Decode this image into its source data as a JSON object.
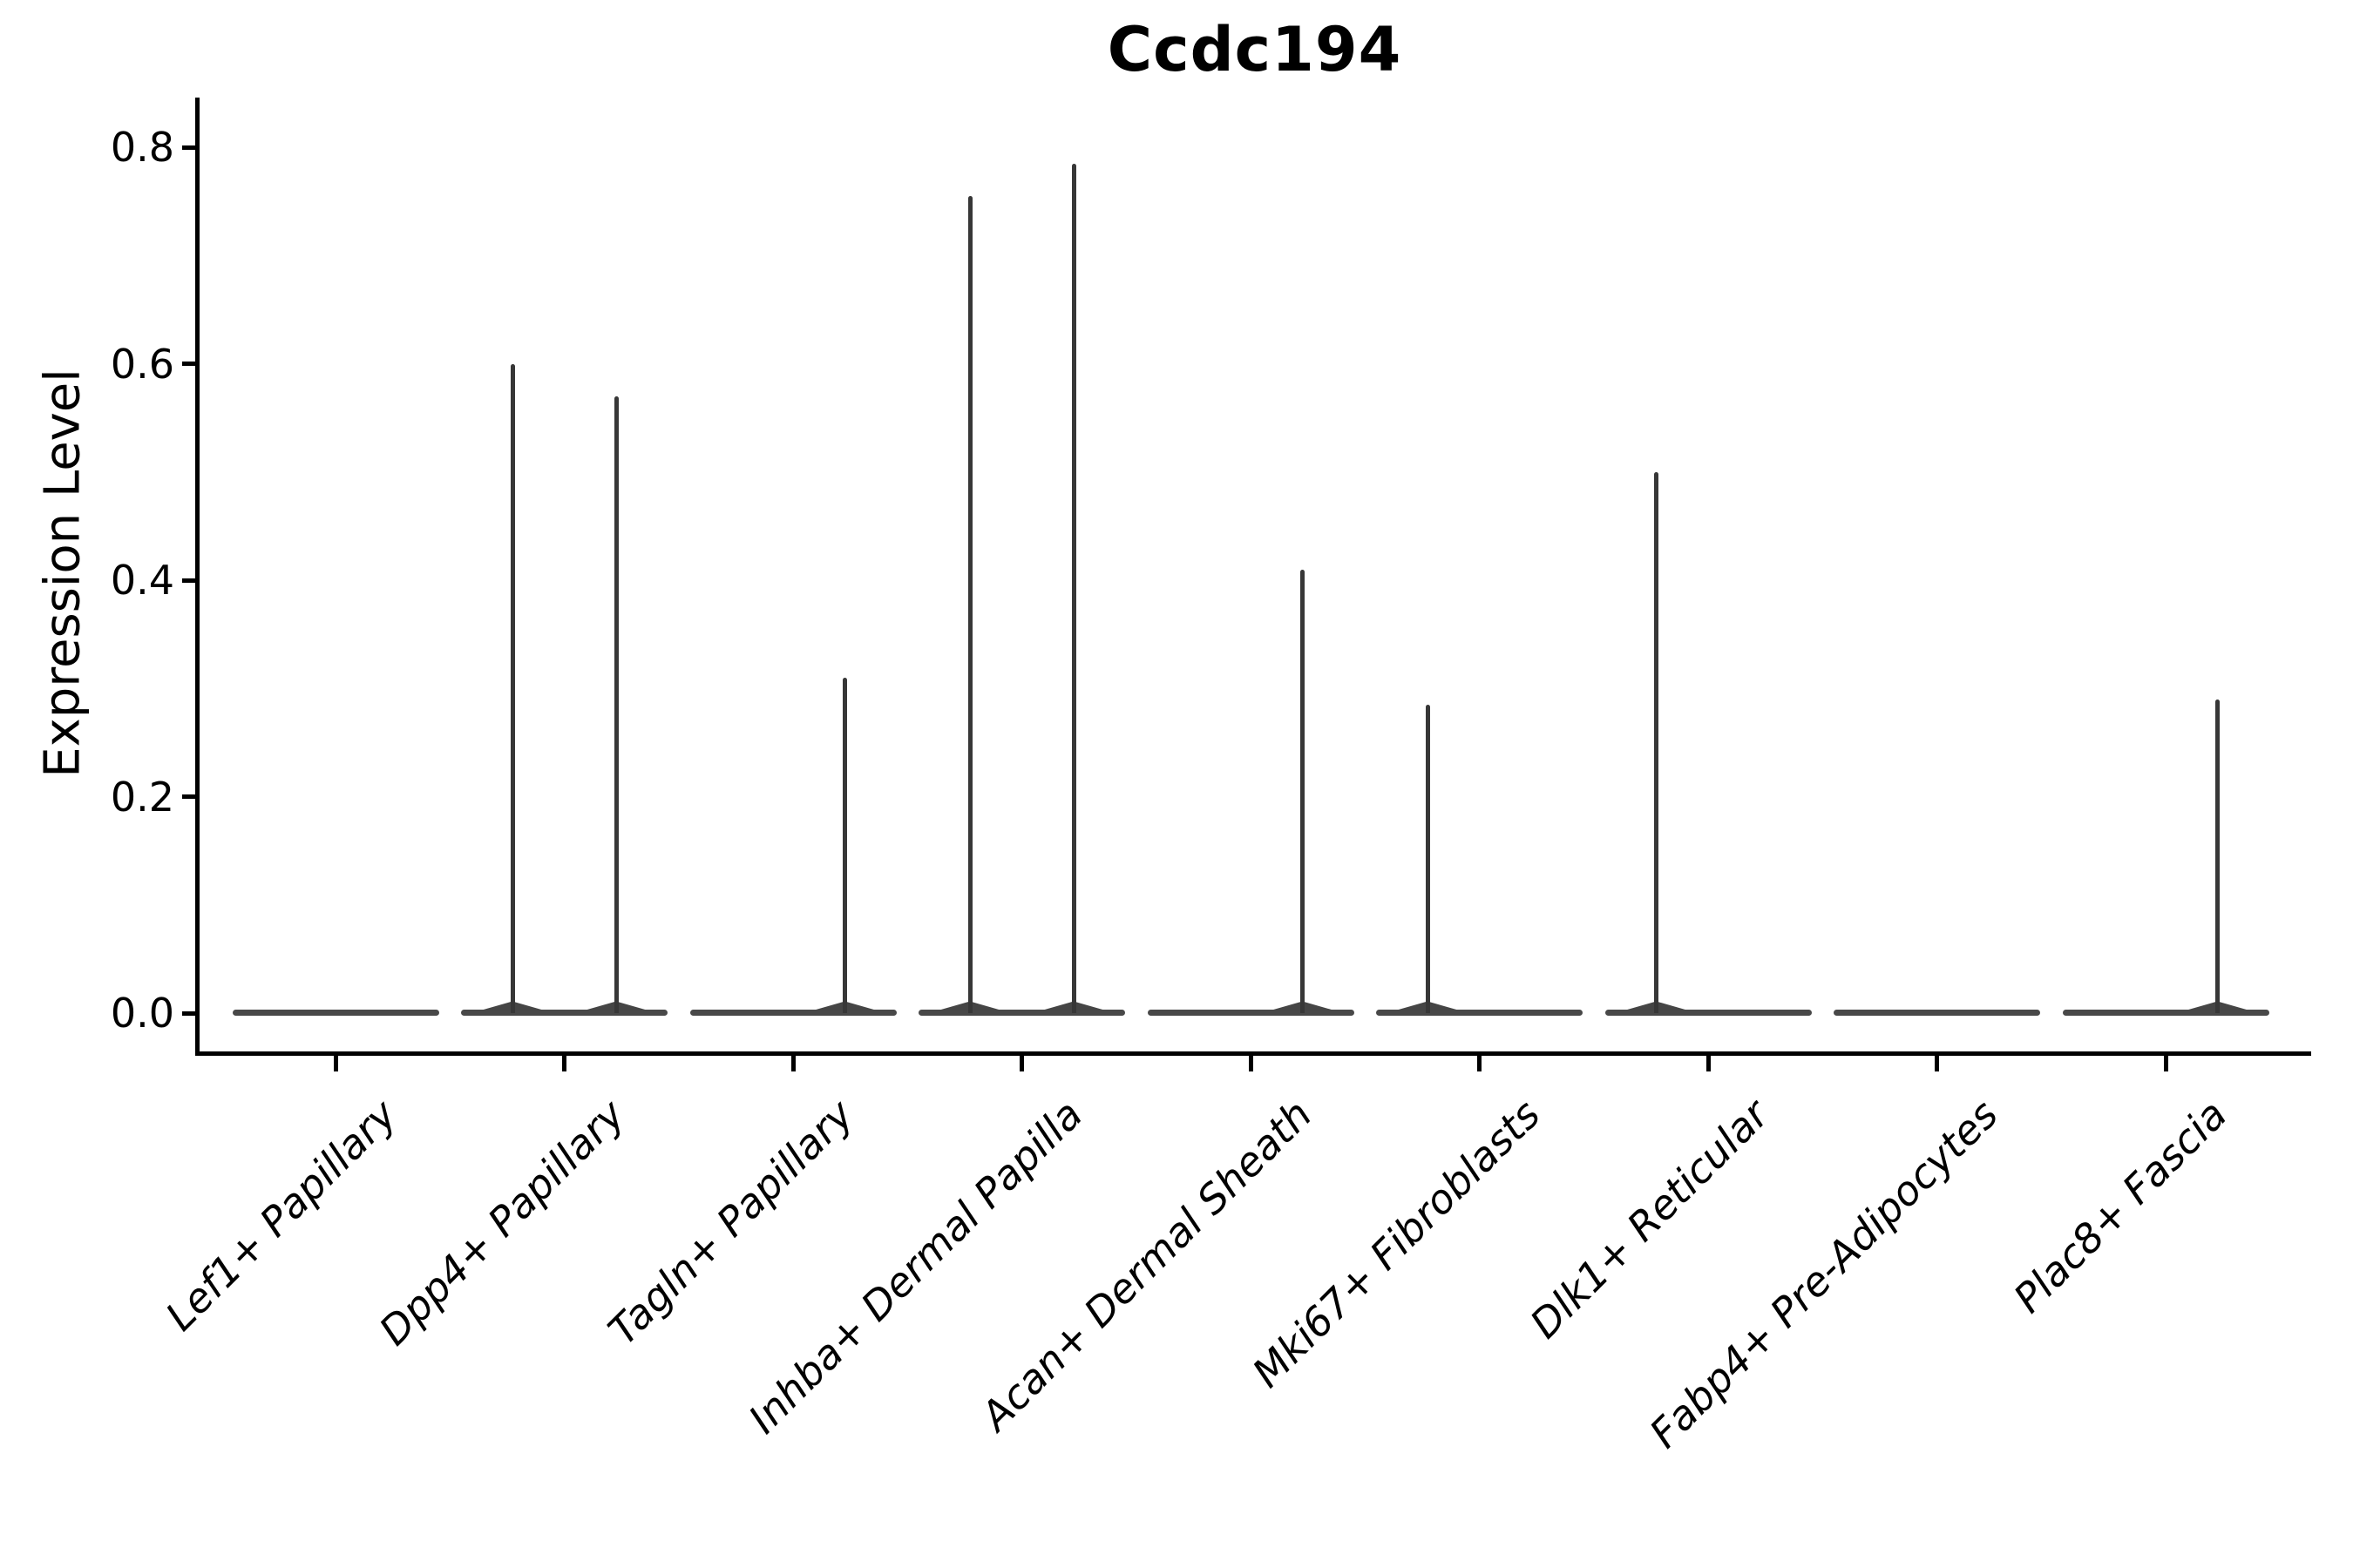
{
  "chart_data": {
    "type": "violin",
    "title": "Ccdc194",
    "ylabel": "Expression Level",
    "xlabel": "",
    "ylim": [
      0.0,
      0.8
    ],
    "ytick_labels": [
      "0.0",
      "0.2",
      "0.4",
      "0.6",
      "0.8"
    ],
    "ytick_values": [
      0.0,
      0.2,
      0.4,
      0.6,
      0.8
    ],
    "grid": "off",
    "legend": "none",
    "categories": [
      "Lef1+ Papillary",
      "Dpp4+ Papillary",
      "Tagln+ Papillary",
      "Inhba+ Dermal Papilla",
      "Acan+ Dermal Sheath",
      "Mki67+ Fibroblasts",
      "Dlk1+ Reticular",
      "Fabp4+ Pre-Adipocytes",
      "Plac8+ Fascia"
    ],
    "violins": [
      {
        "category": "Lef1+ Papillary",
        "baseline": 0.0,
        "spikes": []
      },
      {
        "category": "Dpp4+ Papillary",
        "baseline": 0.0,
        "spikes": [
          {
            "side": "left",
            "value": 0.6
          },
          {
            "side": "right",
            "value": 0.57
          }
        ]
      },
      {
        "category": "Tagln+ Papillary",
        "baseline": 0.0,
        "spikes": [
          {
            "side": "right",
            "value": 0.31
          }
        ]
      },
      {
        "category": "Inhba+ Dermal Papilla",
        "baseline": 0.0,
        "spikes": [
          {
            "side": "left",
            "value": 0.755
          },
          {
            "side": "right",
            "value": 0.785
          }
        ]
      },
      {
        "category": "Acan+ Dermal Sheath",
        "baseline": 0.0,
        "spikes": [
          {
            "side": "right",
            "value": 0.41
          }
        ]
      },
      {
        "category": "Mki67+ Fibroblasts",
        "baseline": 0.0,
        "spikes": [
          {
            "side": "left",
            "value": 0.285
          }
        ]
      },
      {
        "category": "Dlk1+ Reticular",
        "baseline": 0.0,
        "spikes": [
          {
            "side": "left",
            "value": 0.5
          }
        ]
      },
      {
        "category": "Fabp4+ Pre-Adipocytes",
        "baseline": 0.0,
        "spikes": []
      },
      {
        "category": "Plac8+ Fascia",
        "baseline": 0.0,
        "spikes": [
          {
            "side": "right",
            "value": 0.29
          }
        ]
      }
    ]
  },
  "colors": {
    "background": "#ffffff",
    "axis": "#000000",
    "text": "#000000",
    "spike": "#373737",
    "baseline_bar": "#484848",
    "bump": "#454545"
  }
}
